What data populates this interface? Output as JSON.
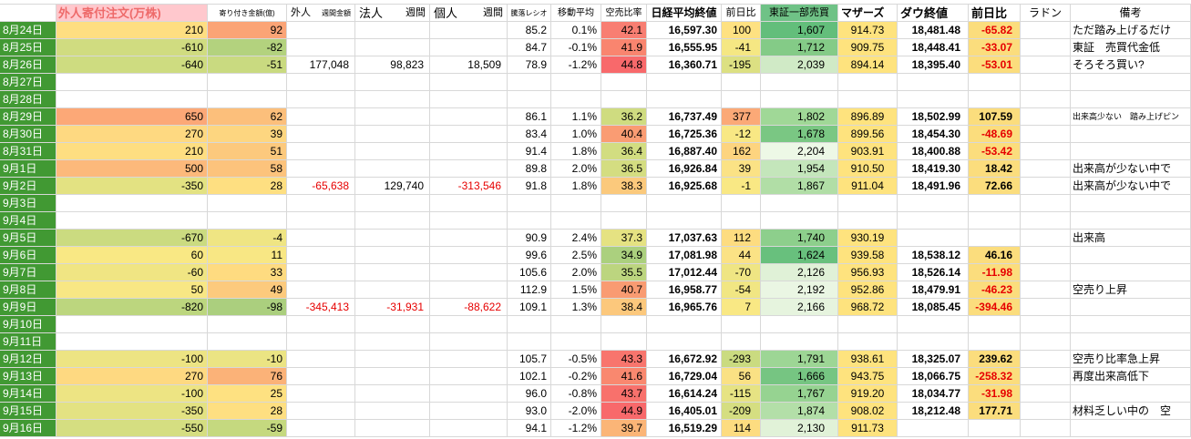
{
  "colors": {
    "date_bg": "#419933",
    "grid_line": "#d8d8d8",
    "header_pink_bg": "#ffc8cd",
    "header_pink_fg": "#ee6a6a",
    "tse_header_bg": "#6fc286",
    "neg_red": "#e60000"
  },
  "header": {
    "foreign_order": "外人寄付注文(万株)",
    "opening_amount": "寄り付き金額(億)",
    "gaijin": "外人",
    "gaijin_week": "週間金額",
    "hojin": "法人",
    "hojin_week": "週間",
    "kojin": "個人",
    "kojin_week": "週間",
    "ratio": "騰落レシオ",
    "moving_avg": "移動平均",
    "short_ratio": "空売比率",
    "nikkei": "日経平均終値",
    "nikkei_change": "前日比",
    "tse": "東証一部売買",
    "mothers": "マザーズ",
    "dow": "ダウ終値",
    "dow_change": "前日比",
    "radon": "ラドン",
    "remarks": "備考"
  },
  "rows": [
    {
      "date": "8月24日",
      "foreign": "210",
      "foreign_bg": "#fede81",
      "opening": "92",
      "opening_bg": "#fba476",
      "ratio": "85.2",
      "ma": "0.1%",
      "sr": "42.1",
      "sr_bg": "#f87e72",
      "nk": "16,597.30",
      "nkc": "100",
      "nkc_bg": "#fee181",
      "tse": "1,607",
      "tse_bg": "#63be7b",
      "mo": "914.73",
      "mo_bg": "#fee37e",
      "dow": "18,481.48",
      "dowc": "-65.82",
      "dowc_red": true,
      "dowc_bg": "#fbdd7d",
      "remark": "ただ踏み上げるだけ"
    },
    {
      "date": "8月25日",
      "foreign": "-610",
      "foreign_bg": "#d0dc80",
      "opening": "-82",
      "opening_bg": "#b3d27e",
      "ratio": "84.7",
      "ma": "-0.1%",
      "sr": "41.9",
      "sr_bg": "#f9856f",
      "nk": "16,555.95",
      "nkc": "-41",
      "nkc_bg": "#f5e783",
      "tse": "1,712",
      "tse_bg": "#84cb87",
      "mo": "909.75",
      "mo_bg": "#fee37e",
      "dow": "18,448.41",
      "dowc": "-33.07",
      "dowc_red": true,
      "dowc_bg": "#fbdd7d",
      "remark": "東証　売買代金低"
    },
    {
      "date": "8月26日",
      "foreign": "-640",
      "foreign_bg": "#cedc80",
      "opening": "-51",
      "opening_bg": "#c9da80",
      "gw": "177,048",
      "hw": "98,823",
      "kw": "18,509",
      "ratio": "78.9",
      "ma": "-1.2%",
      "sr": "44.8",
      "sr_bg": "#f8696b",
      "nk": "16,360.71",
      "nkc": "-195",
      "nkc_bg": "#dce082",
      "tse": "2,039",
      "tse_bg": "#d0eac6",
      "mo": "894.14",
      "mo_bg": "#fee37e",
      "dow": "18,395.40",
      "dowc": "-53.01",
      "dowc_red": true,
      "dowc_bg": "#fbdd7d",
      "remark": "そろそろ買い?"
    },
    {
      "date": "8月27日"
    },
    {
      "date": "8月28日"
    },
    {
      "date": "8月29日",
      "foreign": "650",
      "foreign_bg": "#fca877",
      "opening": "62",
      "opening_bg": "#fcbf7b",
      "ratio": "86.1",
      "ma": "1.1%",
      "sr": "36.2",
      "sr_bg": "#cfdc80",
      "nk": "16,737.49",
      "nkc": "377",
      "nkc_bg": "#fba977",
      "tse": "1,802",
      "tse_bg": "#a0d897",
      "mo": "896.89",
      "mo_bg": "#fee37e",
      "dow": "18,502.99",
      "dowc": "107.59",
      "dowc_bg": "#fbdd7d",
      "remark": "出来高少ない　踏み上げピン",
      "remark_small": true
    },
    {
      "date": "8月30日",
      "foreign": "270",
      "foreign_bg": "#fed981",
      "opening": "39",
      "opening_bg": "#fdd680",
      "ratio": "83.4",
      "ma": "1.0%",
      "sr": "40.4",
      "sr_bg": "#fa9c73",
      "nk": "16,725.36",
      "nkc": "-12",
      "nkc_bg": "#f8e884",
      "tse": "1,678",
      "tse_bg": "#7ac783",
      "mo": "899.56",
      "mo_bg": "#fee37e",
      "dow": "18,454.30",
      "dowc": "-48.69",
      "dowc_red": true,
      "dowc_bg": "#fbdd7d"
    },
    {
      "date": "8月31日",
      "foreign": "210",
      "foreign_bg": "#fede81",
      "opening": "51",
      "opening_bg": "#fcc97d",
      "ratio": "91.4",
      "ma": "1.8%",
      "sr": "36.4",
      "sr_bg": "#d2dd81",
      "nk": "16,887.40",
      "nkc": "162",
      "nkc_bg": "#fdd47f",
      "tse": "2,204",
      "tse_bg": "#edf8e6",
      "mo": "903.91",
      "mo_bg": "#fee37e",
      "dow": "18,400.88",
      "dowc": "-53.42",
      "dowc_red": true,
      "dowc_bg": "#fbdd7d"
    },
    {
      "date": "9月1日",
      "foreign": "500",
      "foreign_bg": "#fcb97b",
      "opening": "58",
      "opening_bg": "#fcc37c",
      "ratio": "89.8",
      "ma": "2.0%",
      "sr": "36.5",
      "sr_bg": "#d4dd81",
      "nk": "16,926.84",
      "nkc": "39",
      "nkc_bg": "#fbe285",
      "tse": "1,954",
      "tse_bg": "#c4e6bb",
      "mo": "910.50",
      "mo_bg": "#fee37e",
      "dow": "18,419.30",
      "dowc": "18.42",
      "dowc_bg": "#fbdd7d",
      "remark": "出来高が少ない中で"
    },
    {
      "date": "9月2日",
      "foreign": "-350",
      "foreign_bg": "#e3e282",
      "opening": "28",
      "opening_bg": "#fedf81",
      "gw": "-65,638",
      "gw_red": true,
      "hw": "129,740",
      "kw": "-313,546",
      "kw_red": true,
      "ratio": "91.8",
      "ma": "1.8%",
      "sr": "38.3",
      "sr_bg": "#fbc97c",
      "nk": "16,925.68",
      "nkc": "-1",
      "nkc_bg": "#f9e884",
      "tse": "1,867",
      "tse_bg": "#b1dea6",
      "mo": "911.04",
      "mo_bg": "#fee37e",
      "dow": "18,491.96",
      "dowc": "72.66",
      "dowc_bg": "#fbdd7d",
      "remark": "出来高が少ない中で"
    },
    {
      "date": "9月3日"
    },
    {
      "date": "9月4日"
    },
    {
      "date": "9月5日",
      "foreign": "-670",
      "foreign_bg": "#cbdb80",
      "opening": "-4",
      "opening_bg": "#efe583",
      "ratio": "90.9",
      "ma": "2.4%",
      "sr": "37.3",
      "sr_bg": "#e5e282",
      "nk": "17,037.63",
      "nkc": "112",
      "nkc_bg": "#fddc80",
      "tse": "1,740",
      "tse_bg": "#8dcf8c",
      "mo": "930.19",
      "mo_bg": "#fee37e",
      "remark": "出来高"
    },
    {
      "date": "9月6日",
      "foreign": "60",
      "foreign_bg": "#f9e884",
      "opening": "11",
      "opening_bg": "#f8e784",
      "ratio": "99.6",
      "ma": "2.5%",
      "sr": "34.9",
      "sr_bg": "#abd07e",
      "nk": "17,081.98",
      "nkc": "44",
      "nkc_bg": "#fbe285",
      "tse": "1,624",
      "tse_bg": "#68c07d",
      "mo": "939.58",
      "mo_bg": "#fee37e",
      "dow": "18,538.12",
      "dowc": "46.16",
      "dowc_bg": "#fbdd7d"
    },
    {
      "date": "9月7日",
      "foreign": "-60",
      "foreign_bg": "#f0e583",
      "opening": "33",
      "opening_bg": "#fedb80",
      "ratio": "105.6",
      "ma": "2.0%",
      "sr": "35.5",
      "sr_bg": "#bcd57f",
      "nk": "17,012.44",
      "nkc": "-70",
      "nkc_bg": "#efe583",
      "tse": "2,126",
      "tse_bg": "#e0f1d7",
      "mo": "956.93",
      "mo_bg": "#fee37e",
      "dow": "18,526.14",
      "dowc": "-11.98",
      "dowc_red": true,
      "dowc_bg": "#fbdd7d"
    },
    {
      "date": "9月8日",
      "foreign": "50",
      "foreign_bg": "#f8e784",
      "opening": "49",
      "opening_bg": "#fcca7d",
      "ratio": "112.9",
      "ma": "1.5%",
      "sr": "40.7",
      "sr_bg": "#f99b72",
      "nk": "16,958.77",
      "nkc": "-54",
      "nkc_bg": "#f1e683",
      "tse": "2,192",
      "tse_bg": "#eaf6e3",
      "mo": "952.86",
      "mo_bg": "#fee37e",
      "dow": "18,479.91",
      "dowc": "-46.23",
      "dowc_red": true,
      "dowc_bg": "#fbdd7d",
      "remark": "空売り上昇"
    },
    {
      "date": "9月9日",
      "foreign": "-820",
      "foreign_bg": "#bcd67e",
      "opening": "-98",
      "opening_bg": "#abcf7e",
      "gw": "-345,413",
      "gw_red": true,
      "hw": "-31,931",
      "hw_red": true,
      "kw": "-88,622",
      "kw_red": true,
      "ratio": "109.1",
      "ma": "1.3%",
      "sr": "38.4",
      "sr_bg": "#fcc87c",
      "nk": "16,965.76",
      "nkc": "7",
      "nkc_bg": "#f9e884",
      "tse": "2,166",
      "tse_bg": "#e6f4de",
      "mo": "968.72",
      "mo_bg": "#fee37e",
      "dow": "18,085.45",
      "dowc": "-394.46",
      "dowc_red": true,
      "dowc_bg": "#fbdd7d"
    },
    {
      "date": "9月10日"
    },
    {
      "date": "9月11日"
    },
    {
      "date": "9月12日",
      "foreign": "-100",
      "foreign_bg": "#ede483",
      "opening": "-10",
      "opening_bg": "#ebe483",
      "ratio": "105.7",
      "ma": "-0.5%",
      "sr": "43.3",
      "sr_bg": "#f8756d",
      "nk": "16,672.92",
      "nkc": "-293",
      "nkc_bg": "#cadb80",
      "tse": "1,791",
      "tse_bg": "#9dd695",
      "mo": "938.61",
      "mo_bg": "#fee37e",
      "dow": "18,325.07",
      "dowc": "239.62",
      "dowc_bg": "#fbdd7d",
      "remark": "空売り比率急上昇"
    },
    {
      "date": "9月13日",
      "foreign": "270",
      "foreign_bg": "#fed981",
      "opening": "76",
      "opening_bg": "#fbb278",
      "ratio": "102.1",
      "ma": "-0.2%",
      "sr": "41.6",
      "sr_bg": "#f9886f",
      "nk": "16,729.04",
      "nkc": "56",
      "nkc_bg": "#fae184",
      "tse": "1,666",
      "tse_bg": "#76c582",
      "mo": "943.75",
      "mo_bg": "#fee37e",
      "dow": "18,066.75",
      "dowc": "-258.32",
      "dowc_red": true,
      "dowc_bg": "#fbdd7d",
      "remark": "再度出来高低下"
    },
    {
      "date": "9月14日",
      "foreign": "-100",
      "foreign_bg": "#ede483",
      "opening": "25",
      "opening_bg": "#fee181",
      "ratio": "96.0",
      "ma": "-0.8%",
      "sr": "43.7",
      "sr_bg": "#f8716c",
      "nk": "16,614.24",
      "nkc": "-115",
      "nkc_bg": "#e6e383",
      "tse": "1,767",
      "tse_bg": "#96d391",
      "mo": "919.20",
      "mo_bg": "#fee37e",
      "dow": "18,034.77",
      "dowc": "-31.98",
      "dowc_red": true,
      "dowc_bg": "#fbdd7d"
    },
    {
      "date": "9月15日",
      "foreign": "-350",
      "foreign_bg": "#e3e282",
      "opening": "28",
      "opening_bg": "#fedf81",
      "ratio": "93.0",
      "ma": "-2.0%",
      "sr": "44.9",
      "sr_bg": "#f8696b",
      "nk": "16,405.01",
      "nkc": "-209",
      "nkc_bg": "#d5de81",
      "tse": "1,874",
      "tse_bg": "#b3dfa8",
      "mo": "908.02",
      "mo_bg": "#fee37e",
      "dow": "18,212.48",
      "dowc": "177.71",
      "dowc_bg": "#fbdd7d",
      "remark": "材料乏しい中の　空"
    },
    {
      "date": "9月16日",
      "foreign": "-550",
      "foreign_bg": "#d5de81",
      "opening": "-59",
      "opening_bg": "#c5d97f",
      "ratio": "94.1",
      "ma": "-1.2%",
      "sr": "39.7",
      "sr_bg": "#fbb577",
      "nk": "16,519.29",
      "nkc": "114",
      "nkc_bg": "#fddc80",
      "tse": "2,130",
      "tse_bg": "#e1f2d8",
      "mo": "911.73",
      "mo_bg": "#fee37e"
    }
  ]
}
